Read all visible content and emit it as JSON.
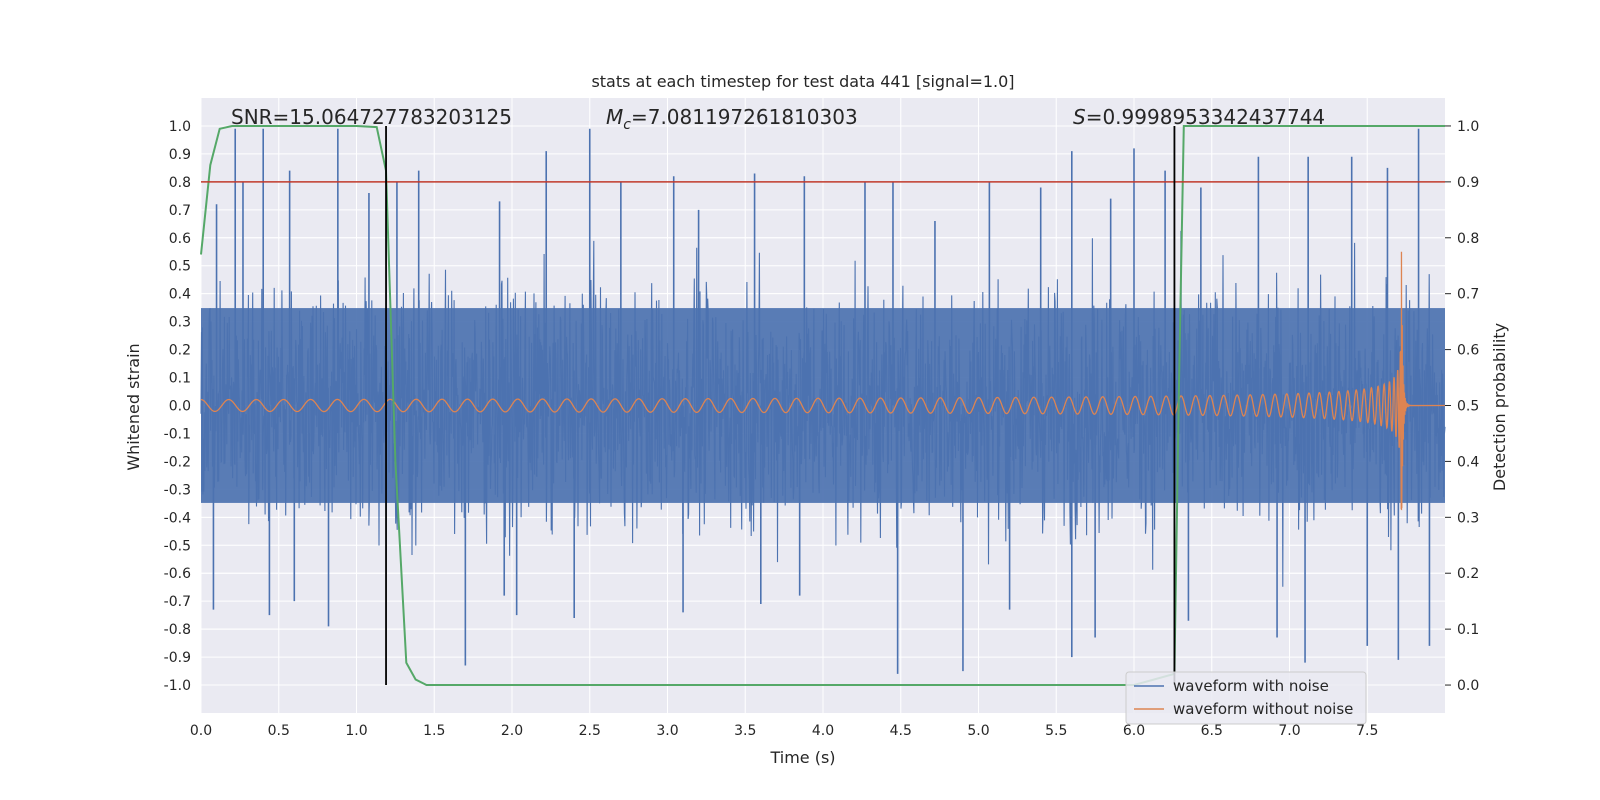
{
  "chart_data": {
    "type": "line",
    "title": "stats at each timestep for test data 441 [signal=1.0]",
    "xlabel": "Time (s)",
    "ylabel_left": "Whitened strain",
    "ylabel_right": "Detection probability",
    "xlim": [
      0.0,
      8.0
    ],
    "ylim_left": [
      -1.1,
      1.1
    ],
    "ylim_right": [
      -0.05,
      1.05
    ],
    "x_ticks": [
      "0.0",
      "0.5",
      "1.0",
      "1.5",
      "2.0",
      "2.5",
      "3.0",
      "3.5",
      "4.0",
      "4.5",
      "5.0",
      "5.5",
      "6.0",
      "6.5",
      "7.0",
      "7.5"
    ],
    "y_ticks_left": [
      "1.0",
      "0.9",
      "0.8",
      "0.7",
      "0.6",
      "0.5",
      "0.4",
      "0.3",
      "0.2",
      "0.1",
      "0.0",
      "-0.1",
      "-0.2",
      "-0.3",
      "-0.4",
      "-0.5",
      "-0.6",
      "-0.7",
      "-0.8",
      "-0.9",
      "-1.0"
    ],
    "y_ticks_right": [
      "1.0",
      "0.9",
      "0.8",
      "0.7",
      "0.6",
      "0.5",
      "0.4",
      "0.3",
      "0.2",
      "0.1",
      "0.0"
    ],
    "annotations": {
      "snr": "SNR=15.064727783203125",
      "mc_symbol": "M",
      "mc_sub": "c",
      "mc_value": "=7.081197261810303",
      "s_symbol": "S",
      "s_value": "=0.9998953342437744"
    },
    "threshold_line": {
      "y_right": 0.9,
      "color": "#c0392b"
    },
    "vertical_lines": [
      1.19,
      6.26
    ],
    "series": [
      {
        "name": "waveform with noise",
        "color": "#4c72b0",
        "axis": "left",
        "envelope_base": 0.41,
        "spikes": [
          [
            0.22,
            0.99
          ],
          [
            0.4,
            0.99
          ],
          [
            0.88,
            0.99
          ],
          [
            0.57,
            0.84
          ],
          [
            0.27,
            0.8
          ],
          [
            0.1,
            0.72
          ],
          [
            1.08,
            0.76
          ],
          [
            1.26,
            0.8
          ],
          [
            1.4,
            0.84
          ],
          [
            2.22,
            0.91
          ],
          [
            2.5,
            0.99
          ],
          [
            1.92,
            0.73
          ],
          [
            2.7,
            0.8
          ],
          [
            3.04,
            0.82
          ],
          [
            3.56,
            0.83
          ],
          [
            3.88,
            0.82
          ],
          [
            4.45,
            0.8
          ],
          [
            4.27,
            0.8
          ],
          [
            5.07,
            0.8
          ],
          [
            5.4,
            0.78
          ],
          [
            5.6,
            0.91
          ],
          [
            6.0,
            0.92
          ],
          [
            6.2,
            0.84
          ],
          [
            6.43,
            0.78
          ],
          [
            6.8,
            0.89
          ],
          [
            7.12,
            0.89
          ],
          [
            7.4,
            0.89
          ],
          [
            7.63,
            0.85
          ],
          [
            7.83,
            0.99
          ],
          [
            4.72,
            0.66
          ],
          [
            3.2,
            0.7
          ],
          [
            5.85,
            0.74
          ],
          [
            0.08,
            -0.73
          ],
          [
            0.82,
            -0.79
          ],
          [
            1.7,
            -0.93
          ],
          [
            2.03,
            -0.75
          ],
          [
            2.4,
            -0.76
          ],
          [
            3.1,
            -0.74
          ],
          [
            3.6,
            -0.71
          ],
          [
            4.48,
            -0.96
          ],
          [
            4.9,
            -0.95
          ],
          [
            5.6,
            -0.9
          ],
          [
            5.75,
            -0.83
          ],
          [
            6.92,
            -0.83
          ],
          [
            7.1,
            -0.92
          ],
          [
            7.5,
            -0.86
          ],
          [
            7.7,
            -0.91
          ],
          [
            0.44,
            -0.75
          ],
          [
            0.6,
            -0.7
          ],
          [
            1.95,
            -0.68
          ],
          [
            3.85,
            -0.68
          ],
          [
            5.2,
            -0.73
          ],
          [
            6.35,
            -0.77
          ],
          [
            7.9,
            -0.86
          ]
        ]
      },
      {
        "name": "waveform without noise",
        "color": "#dd8452",
        "axis": "left",
        "start_amplitude": 0.02,
        "peak_amplitude": 0.55,
        "merger_time": 7.72,
        "ringdown_end": 7.78
      },
      {
        "name": "detection probability",
        "color": "#55a868",
        "axis": "right",
        "x": [
          0.0,
          0.06,
          0.12,
          0.2,
          0.6,
          1.0,
          1.13,
          1.19,
          1.25,
          1.32,
          1.38,
          1.45,
          1.6,
          3.0,
          5.0,
          6.0,
          6.26,
          6.29,
          6.32,
          6.4,
          7.0,
          8.0
        ],
        "y": [
          0.77,
          0.93,
          0.995,
          1.0,
          1.0,
          1.0,
          0.998,
          0.92,
          0.4,
          0.04,
          0.01,
          0.0,
          0.0,
          0.0,
          0.0,
          0.0,
          0.02,
          0.55,
          1.0,
          1.0,
          1.0,
          1.0
        ]
      }
    ],
    "legend": {
      "placement": "lower-right",
      "entries": [
        {
          "label": "waveform with noise",
          "color": "#4c72b0"
        },
        {
          "label": "waveform without noise",
          "color": "#dd8452"
        }
      ]
    }
  }
}
